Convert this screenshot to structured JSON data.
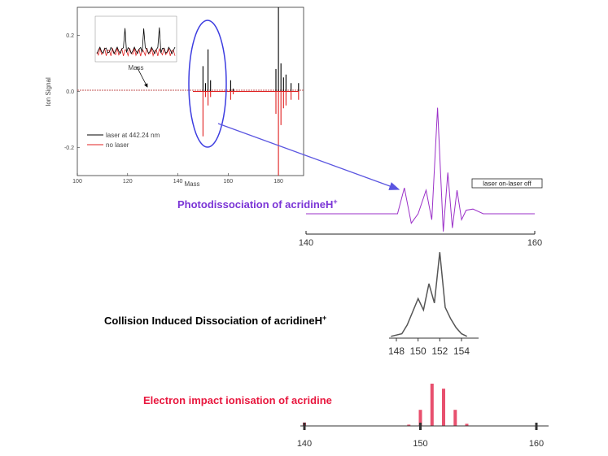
{
  "chart_data": [
    {
      "type": "line",
      "xlabel": "Mass",
      "ylabel": "Ion Signal",
      "xlim": [
        100,
        190
      ],
      "ylim": [
        -0.3,
        0.3
      ],
      "x_ticks": [
        "100",
        "120",
        "140",
        "160",
        "180"
      ],
      "y_ticks": [
        "0.2",
        "0.0",
        "-0.2"
      ],
      "series": [
        {
          "name": "laser at 442.24 nm",
          "color": "#000000",
          "x": [
            146,
            149,
            150,
            151,
            152,
            153,
            154,
            160,
            161,
            162,
            178,
            179,
            180,
            181,
            182,
            183,
            185,
            188
          ],
          "values": [
            0.0,
            0.0,
            0.09,
            0.03,
            0.15,
            0.04,
            0.0,
            0.0,
            0.04,
            0.01,
            0.0,
            0.08,
            0.3,
            0.1,
            0.05,
            0.06,
            0.03,
            0.03
          ]
        },
        {
          "name": "no laser",
          "color": "#e02020",
          "x": [
            146,
            149,
            150,
            151,
            152,
            153,
            154,
            160,
            161,
            162,
            178,
            179,
            180,
            181,
            182,
            183,
            185,
            188
          ],
          "values": [
            0.0,
            0.0,
            -0.16,
            -0.02,
            -0.05,
            -0.02,
            0.0,
            0.0,
            -0.03,
            -0.01,
            0.0,
            -0.08,
            -0.3,
            -0.12,
            -0.06,
            -0.05,
            -0.03,
            -0.03
          ]
        }
      ]
    },
    {
      "type": "line",
      "title": "Photodissociation of acridineH+",
      "legend": "laser on-laser off",
      "xlim": [
        140,
        160
      ],
      "x_ticks": [
        "140",
        "160"
      ],
      "series": [
        {
          "color": "#9b30c8",
          "x": [
            140,
            148,
            148.6,
            149.2,
            149.8,
            150.5,
            151,
            151.5,
            152,
            152.4,
            152.8,
            153.2,
            153.6,
            154,
            154.6,
            155.5,
            160
          ],
          "values": [
            0,
            0,
            0.22,
            -0.08,
            0,
            0.2,
            -0.05,
            0.9,
            -0.15,
            0.35,
            -0.12,
            0.2,
            -0.05,
            0.03,
            0.04,
            0,
            0
          ]
        }
      ]
    },
    {
      "type": "line",
      "title": "Collision Induced Dissociation of acridineH+",
      "xlim": [
        147,
        155
      ],
      "x_ticks": [
        "148",
        "150",
        "152",
        "154"
      ],
      "series": [
        {
          "color": "#555555",
          "x": [
            147.5,
            148.5,
            149,
            149.5,
            150,
            150.5,
            151,
            151.5,
            152,
            152.5,
            153,
            153.5,
            154,
            154.5
          ],
          "values": [
            0.02,
            0.05,
            0.15,
            0.3,
            0.45,
            0.32,
            0.62,
            0.4,
            0.98,
            0.35,
            0.22,
            0.12,
            0.05,
            0.02
          ]
        }
      ]
    },
    {
      "type": "bar",
      "title": "Electron impact ionisation of acridine",
      "xlim": [
        139,
        161
      ],
      "x_ticks": [
        "140",
        "150",
        "160"
      ],
      "series": [
        {
          "color": "#e8506e",
          "x": [
            140,
            149,
            150,
            151,
            152,
            153,
            154
          ],
          "values": [
            0.08,
            0.03,
            0.38,
            1.0,
            0.88,
            0.38,
            0.05
          ]
        }
      ]
    }
  ],
  "inset": {
    "label": "Mass"
  },
  "headings": {
    "photo_main": "Photodissociation of acridineH",
    "cid_main": "Collision Induced Dissociation of acridineH",
    "ei_main": "Electron impact ionisation of acridine",
    "sup": "+"
  },
  "colors": {
    "photo": "#7b35d6",
    "photo_trace": "#9b30c8",
    "ei": "#e8173e",
    "ei_bar": "#e8506e",
    "ellipse": "#3c3ce0",
    "arrow": "#5a55e0",
    "cid_trace": "#555555"
  }
}
